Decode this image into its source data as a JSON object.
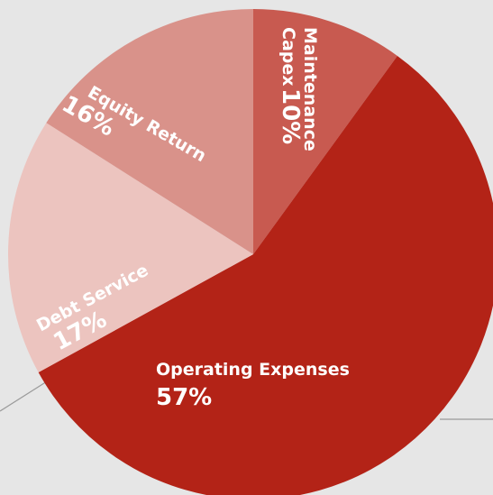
{
  "chart_data": {
    "type": "pie",
    "categories": [
      "Maintenance Capex",
      "Operating Expenses",
      "Debt Service",
      "Equity Return"
    ],
    "values": [
      10,
      57,
      17,
      16
    ],
    "value_labels": [
      "10%",
      "57%",
      "17%",
      "16%"
    ],
    "colors": [
      "#c85a50",
      "#b32317",
      "#ecc4bf",
      "#d9928a"
    ]
  }
}
